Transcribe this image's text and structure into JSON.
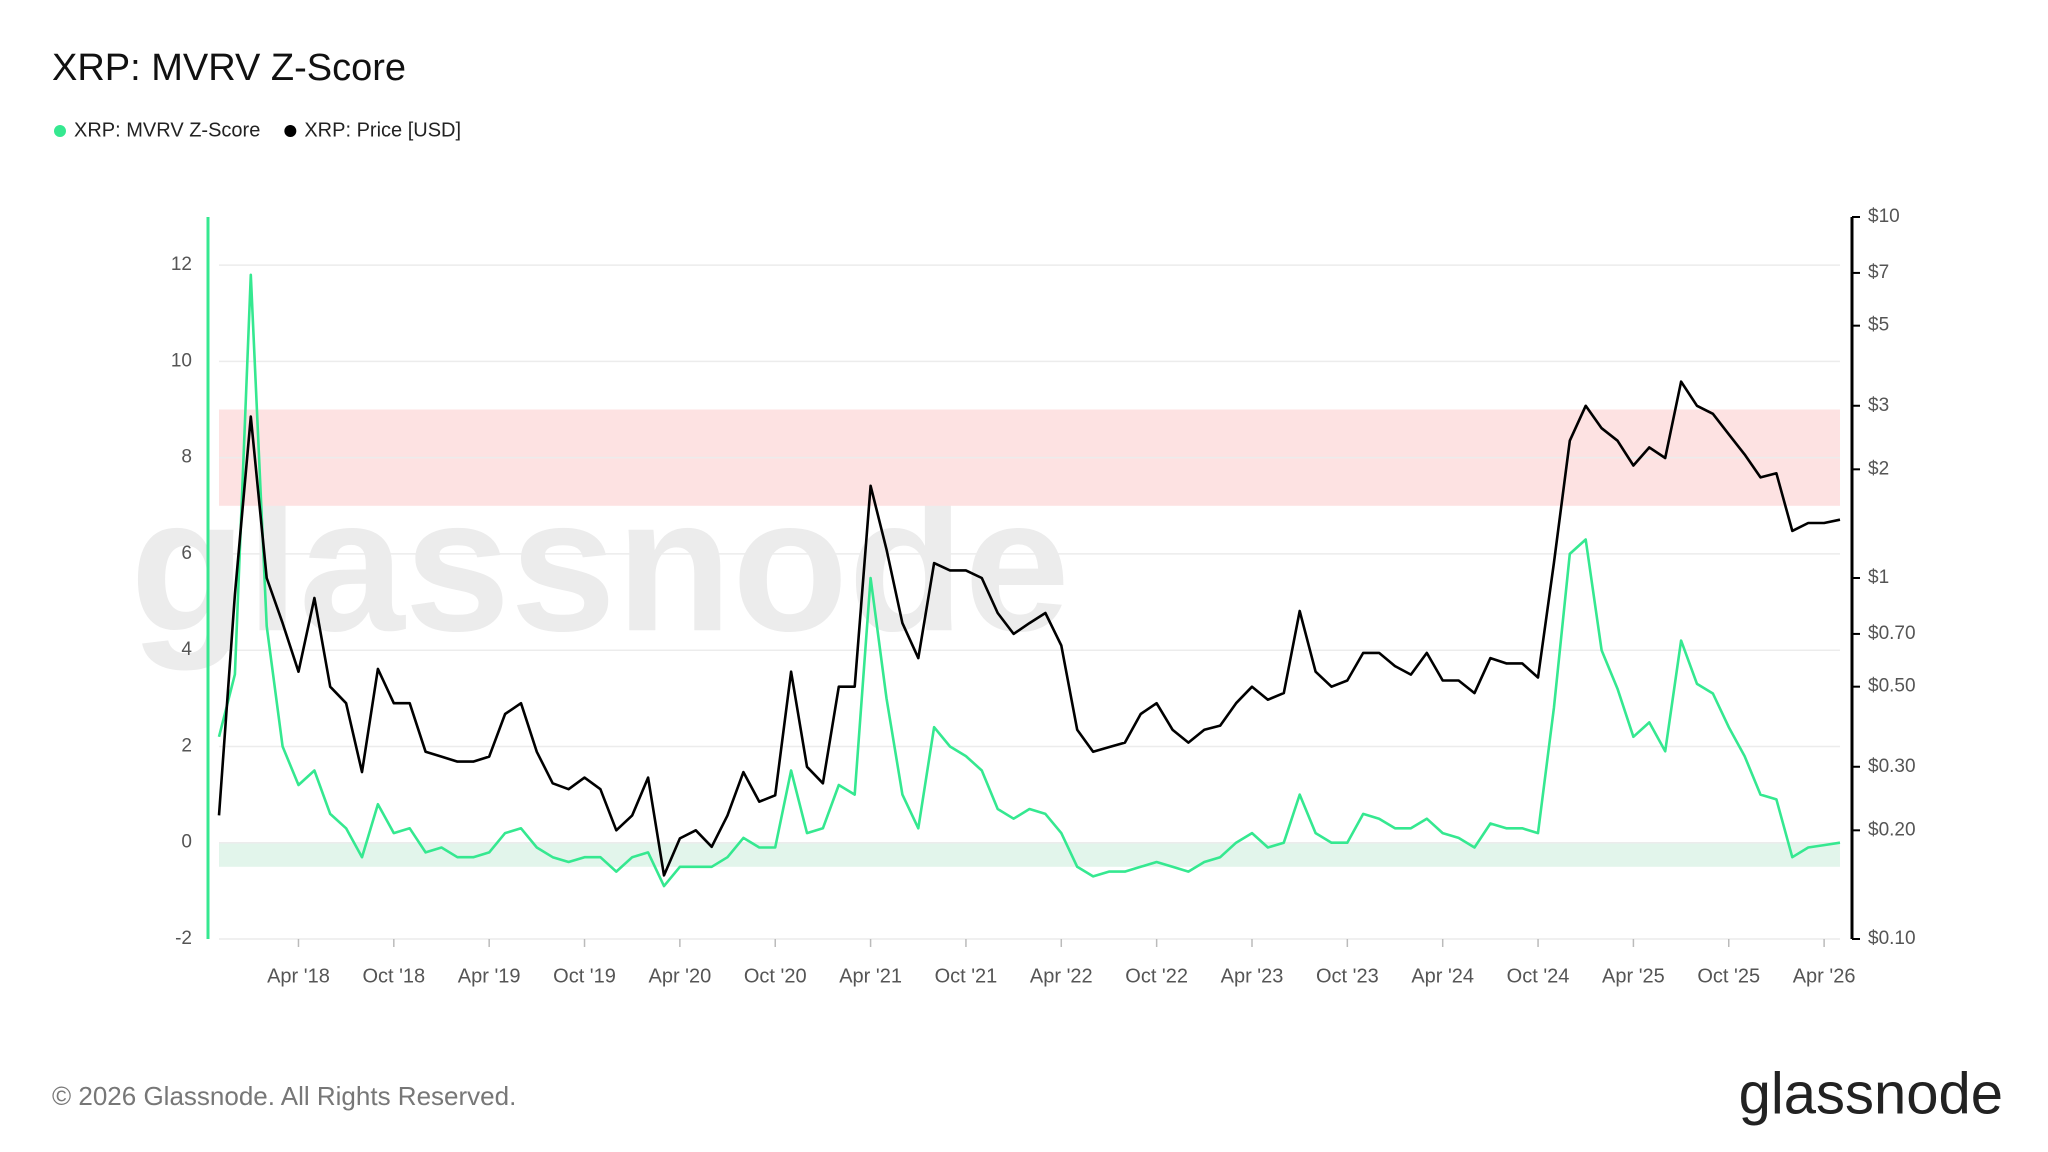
{
  "chart_data": {
    "type": "line",
    "title": "XRP: MVRV Z-Score",
    "watermark": "glassnode",
    "footer": "© 2026 Glassnode. All Rights Reserved.",
    "logo": "glassnode",
    "legend": "top-left",
    "grid": true,
    "y2scale": "log",
    "x": [
      "2017-11",
      "2017-12",
      "2018-01",
      "2018-02",
      "2018-03",
      "2018-04",
      "2018-05",
      "2018-06",
      "2018-07",
      "2018-08",
      "2018-09",
      "2018-10",
      "2018-11",
      "2018-12",
      "2019-01",
      "2019-02",
      "2019-03",
      "2019-04",
      "2019-05",
      "2019-06",
      "2019-07",
      "2019-08",
      "2019-09",
      "2019-10",
      "2019-11",
      "2019-12",
      "2020-01",
      "2020-02",
      "2020-03",
      "2020-04",
      "2020-05",
      "2020-06",
      "2020-07",
      "2020-08",
      "2020-09",
      "2020-10",
      "2020-11",
      "2020-12",
      "2021-01",
      "2021-02",
      "2021-03",
      "2021-04",
      "2021-05",
      "2021-06",
      "2021-07",
      "2021-08",
      "2021-09",
      "2021-10",
      "2021-11",
      "2021-12",
      "2022-01",
      "2022-02",
      "2022-03",
      "2022-04",
      "2022-05",
      "2022-06",
      "2022-07",
      "2022-08",
      "2022-09",
      "2022-10",
      "2022-11",
      "2022-12",
      "2023-01",
      "2023-02",
      "2023-03",
      "2023-04",
      "2023-05",
      "2023-06",
      "2023-07",
      "2023-08",
      "2023-09",
      "2023-10",
      "2023-11",
      "2023-12",
      "2024-01",
      "2024-02",
      "2024-03",
      "2024-04",
      "2024-05",
      "2024-06",
      "2024-07",
      "2024-08",
      "2024-09",
      "2024-10",
      "2024-11",
      "2024-12",
      "2025-01",
      "2025-02",
      "2025-03",
      "2025-04",
      "2025-05",
      "2025-06",
      "2025-07",
      "2025-08",
      "2025-09",
      "2025-10",
      "2025-11",
      "2025-12",
      "2026-01",
      "2026-02",
      "2026-03",
      "2026-04",
      "2026-05"
    ],
    "xlim": [
      "2017-11",
      "2026-05"
    ],
    "xticks": [
      {
        "value": "2018-04",
        "label": "Apr '18"
      },
      {
        "value": "2018-10",
        "label": "Oct '18"
      },
      {
        "value": "2019-04",
        "label": "Apr '19"
      },
      {
        "value": "2019-10",
        "label": "Oct '19"
      },
      {
        "value": "2020-04",
        "label": "Apr '20"
      },
      {
        "value": "2020-10",
        "label": "Oct '20"
      },
      {
        "value": "2021-04",
        "label": "Apr '21"
      },
      {
        "value": "2021-10",
        "label": "Oct '21"
      },
      {
        "value": "2022-04",
        "label": "Apr '22"
      },
      {
        "value": "2022-10",
        "label": "Oct '22"
      },
      {
        "value": "2023-04",
        "label": "Apr '23"
      },
      {
        "value": "2023-10",
        "label": "Oct '23"
      },
      {
        "value": "2024-04",
        "label": "Apr '24"
      },
      {
        "value": "2024-10",
        "label": "Oct '24"
      },
      {
        "value": "2025-04",
        "label": "Apr '25"
      },
      {
        "value": "2025-10",
        "label": "Oct '25"
      },
      {
        "value": "2026-04",
        "label": "Apr '26"
      }
    ],
    "ylim": [
      -2,
      13
    ],
    "yticks": [
      -2,
      0,
      2,
      4,
      6,
      8,
      10,
      12
    ],
    "y2lim": [
      0.1,
      10
    ],
    "y2ticks": [
      {
        "value": 10,
        "label": "$10"
      },
      {
        "value": 7,
        "label": "$7"
      },
      {
        "value": 5,
        "label": "$5"
      },
      {
        "value": 3,
        "label": "$3"
      },
      {
        "value": 2,
        "label": "$2"
      },
      {
        "value": 1,
        "label": "$1"
      },
      {
        "value": 0.7,
        "label": "$0.70"
      },
      {
        "value": 0.5,
        "label": "$0.50"
      },
      {
        "value": 0.3,
        "label": "$0.30"
      },
      {
        "value": 0.2,
        "label": "$0.20"
      },
      {
        "value": 0.1,
        "label": "$0.10"
      }
    ],
    "bands": [
      {
        "from": 7,
        "to": 9,
        "color": "#fde2e2"
      },
      {
        "from": -0.5,
        "to": 0,
        "color": "#e2f5eb"
      }
    ],
    "series": [
      {
        "name": "XRP: MVRV Z-Score",
        "color": "#35e890",
        "axis": "y",
        "values": [
          2.2,
          3.5,
          11.8,
          4.5,
          2.0,
          1.2,
          1.5,
          0.6,
          0.3,
          -0.3,
          0.8,
          0.2,
          0.3,
          -0.2,
          -0.1,
          -0.3,
          -0.3,
          -0.2,
          0.2,
          0.3,
          -0.1,
          -0.3,
          -0.4,
          -0.3,
          -0.3,
          -0.6,
          -0.3,
          -0.2,
          -0.9,
          -0.5,
          -0.5,
          -0.5,
          -0.3,
          0.1,
          -0.1,
          -0.1,
          1.5,
          0.2,
          0.3,
          1.2,
          1.0,
          5.5,
          3.0,
          1.0,
          0.3,
          2.4,
          2.0,
          1.8,
          1.5,
          0.7,
          0.5,
          0.7,
          0.6,
          0.2,
          -0.5,
          -0.7,
          -0.6,
          -0.6,
          -0.5,
          -0.4,
          -0.5,
          -0.6,
          -0.4,
          -0.3,
          0.0,
          0.2,
          -0.1,
          0.0,
          1.0,
          0.2,
          0.0,
          0.0,
          0.6,
          0.5,
          0.3,
          0.3,
          0.5,
          0.2,
          0.1,
          -0.1,
          0.4,
          0.3,
          0.3,
          0.2,
          2.8,
          6.0,
          6.3,
          4.0,
          3.2,
          2.2,
          2.5,
          1.9,
          4.2,
          3.3,
          3.1,
          2.4,
          1.8,
          1.0,
          0.9,
          -0.3,
          -0.1,
          -0.05,
          0.0
        ]
      },
      {
        "name": "XRP: Price [USD]",
        "color": "#000000",
        "axis": "y2",
        "values": [
          0.22,
          0.9,
          2.8,
          1.0,
          0.75,
          0.55,
          0.88,
          0.5,
          0.45,
          0.29,
          0.56,
          0.45,
          0.45,
          0.33,
          0.32,
          0.31,
          0.31,
          0.32,
          0.42,
          0.45,
          0.33,
          0.27,
          0.26,
          0.28,
          0.26,
          0.2,
          0.22,
          0.28,
          0.15,
          0.19,
          0.2,
          0.18,
          0.22,
          0.29,
          0.24,
          0.25,
          0.55,
          0.3,
          0.27,
          0.5,
          0.5,
          1.8,
          1.2,
          0.75,
          0.6,
          1.1,
          1.05,
          1.05,
          1.0,
          0.8,
          0.7,
          0.75,
          0.8,
          0.65,
          0.38,
          0.33,
          0.34,
          0.35,
          0.42,
          0.45,
          0.38,
          0.35,
          0.38,
          0.39,
          0.45,
          0.5,
          0.46,
          0.48,
          0.81,
          0.55,
          0.5,
          0.52,
          0.62,
          0.62,
          0.57,
          0.54,
          0.62,
          0.52,
          0.52,
          0.48,
          0.6,
          0.58,
          0.58,
          0.53,
          1.1,
          2.4,
          3.0,
          2.6,
          2.4,
          2.05,
          2.3,
          2.15,
          3.5,
          3.0,
          2.85,
          2.5,
          2.2,
          1.9,
          1.95,
          1.35,
          1.42,
          1.42,
          1.45
        ]
      }
    ]
  }
}
